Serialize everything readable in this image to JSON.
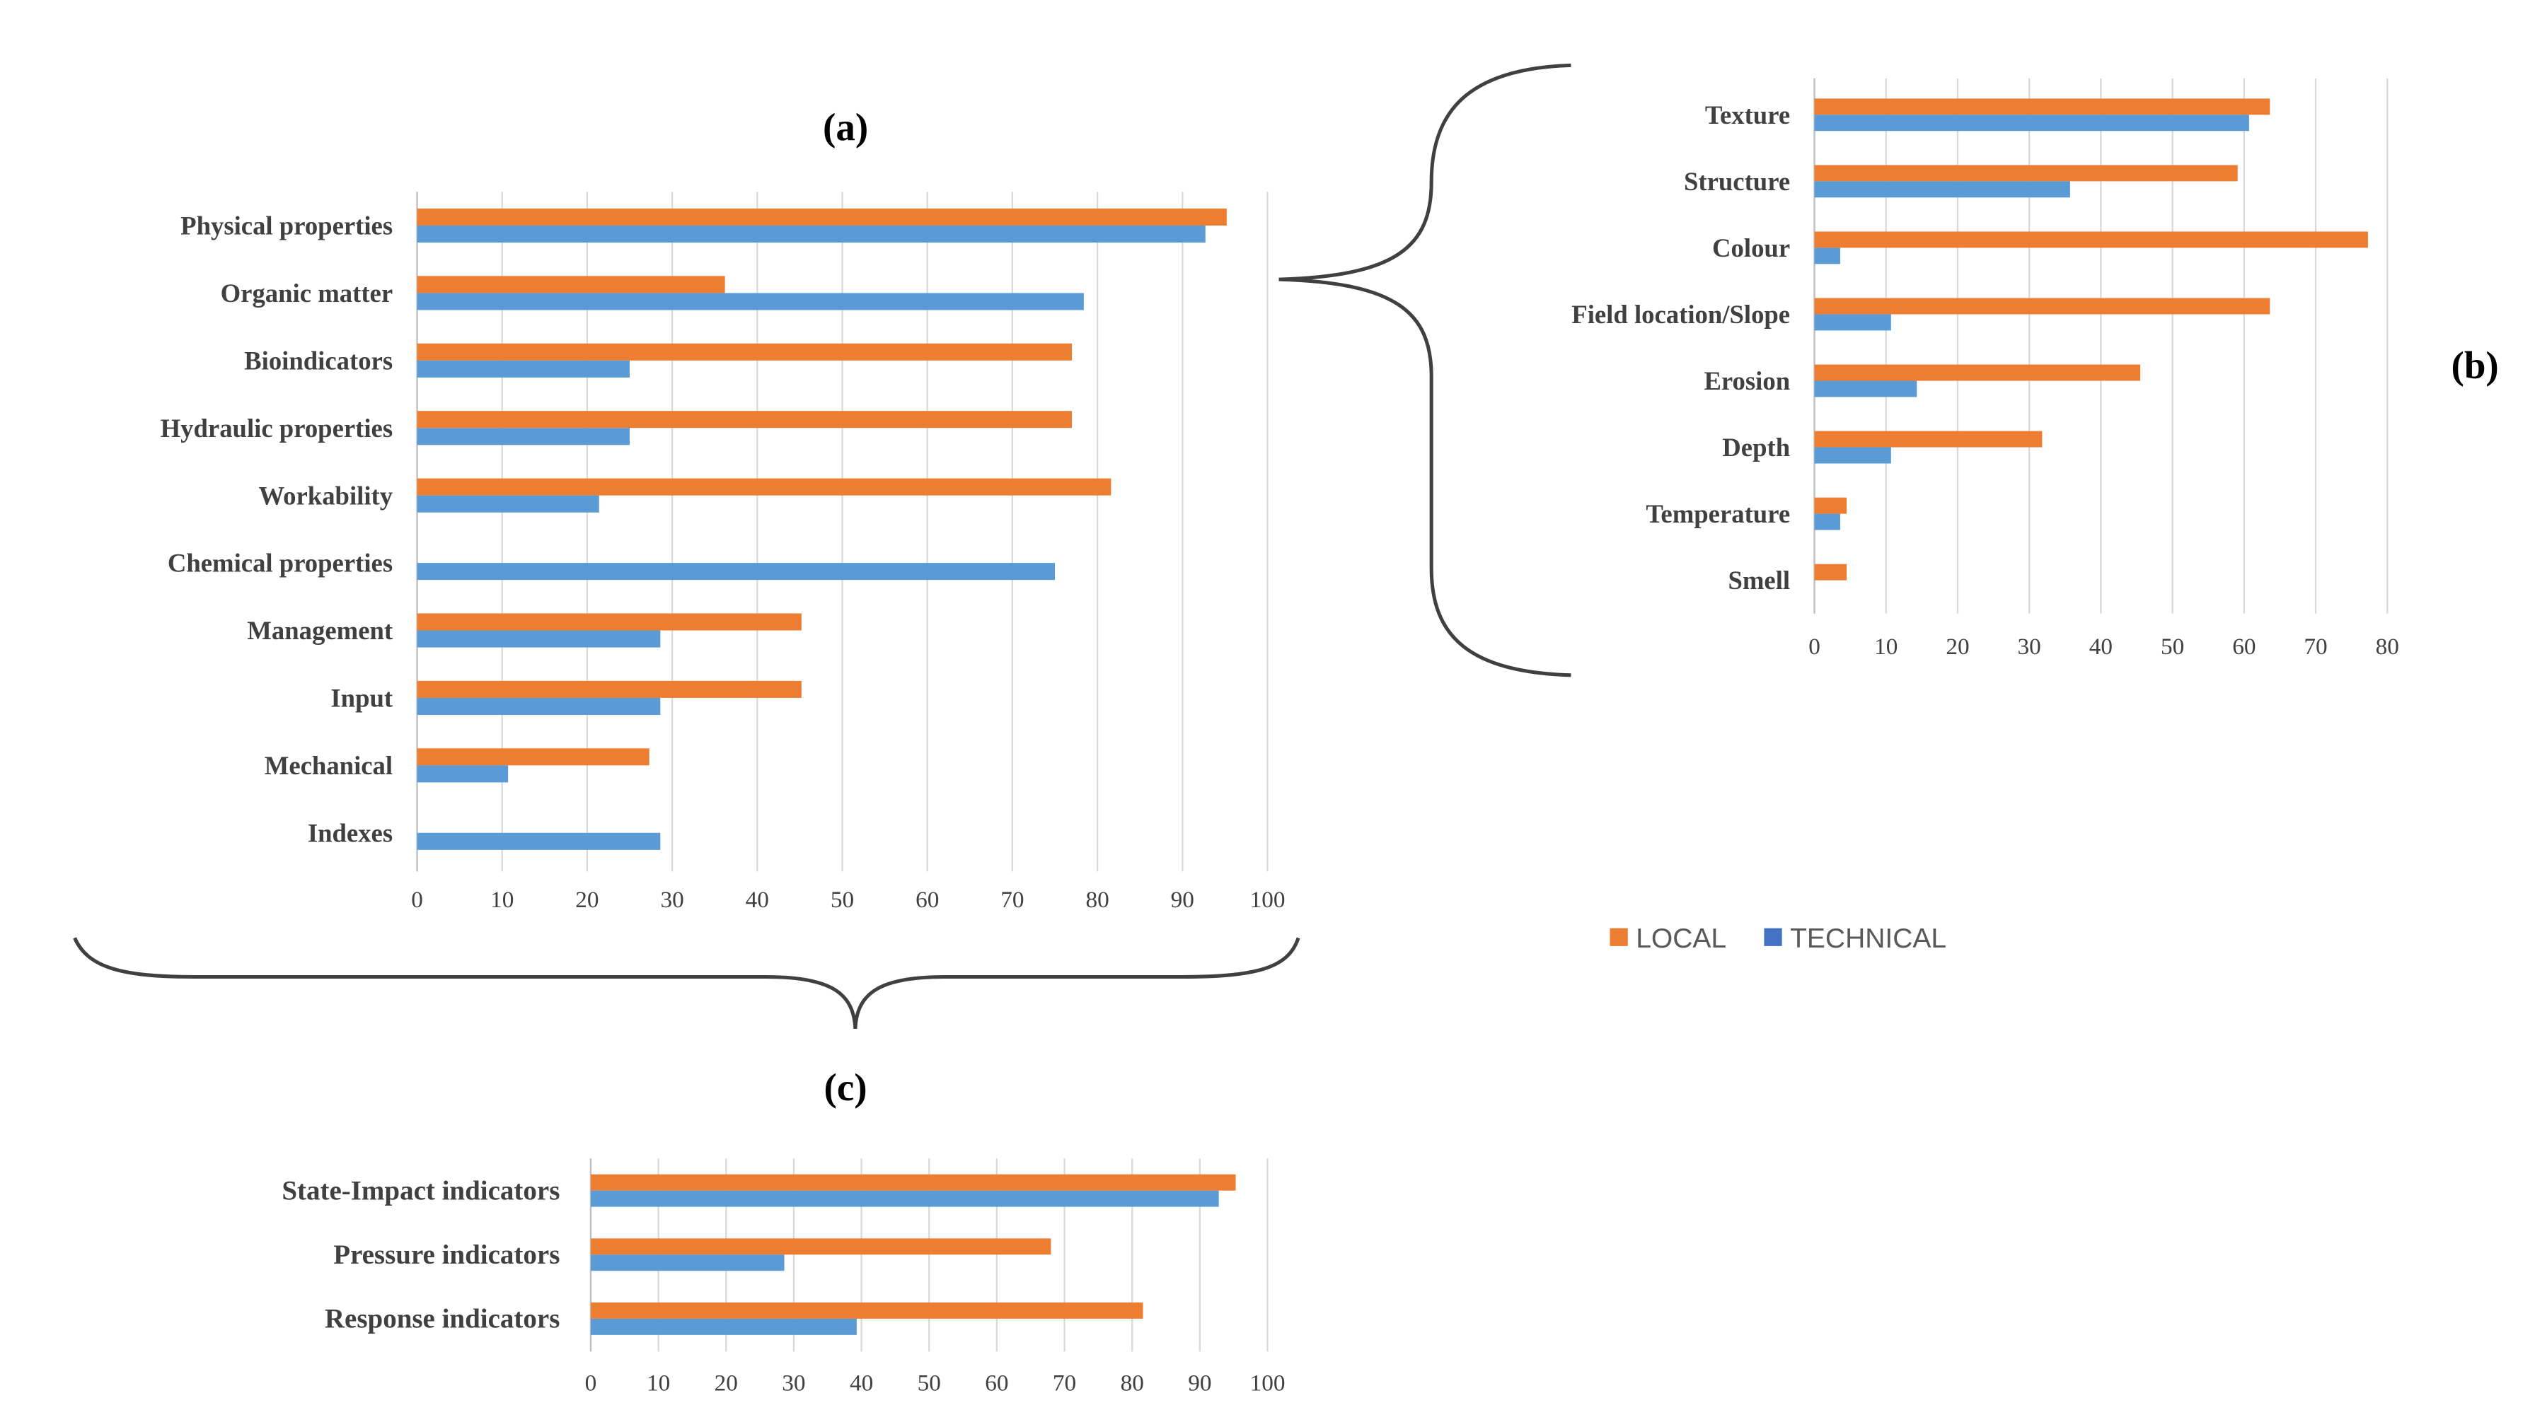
{
  "colors": {
    "local": "#ED7D31",
    "technical": "#5B9BD5",
    "legend_technical": "#4472C4",
    "grid": "#D9D9D9",
    "text": "#404040",
    "brace": "#404040"
  },
  "legend": {
    "local": "LOCAL",
    "technical": "TECHNICAL"
  },
  "chart_data": [
    {
      "id": "a",
      "panel_label": "(a)",
      "type": "bar",
      "orientation": "horizontal",
      "categories": [
        "Physical properties",
        "Organic matter",
        "Bioindicators",
        "Hydraulic properties",
        "Workability",
        "Chemical properties",
        "Management",
        "Input",
        "Mechanical",
        "Indexes"
      ],
      "series": [
        {
          "name": "LOCAL",
          "values": [
            95.2,
            36.2,
            77,
            77,
            81.6,
            0,
            45.2,
            45.2,
            27.3,
            0
          ]
        },
        {
          "name": "TECHNICAL",
          "values": [
            92.7,
            78.4,
            25,
            25,
            21.4,
            75,
            28.6,
            28.6,
            10.7,
            28.6
          ]
        }
      ],
      "xlim": [
        0,
        100
      ],
      "xticks": [
        "0",
        "10",
        "20",
        "30",
        "40",
        "50",
        "60",
        "70",
        "80",
        "90",
        "100"
      ],
      "grid": true
    },
    {
      "id": "b",
      "panel_label": "(b)",
      "type": "bar",
      "orientation": "horizontal",
      "categories": [
        "Texture",
        "Structure",
        "Colour",
        "Field location/Slope",
        "Erosion",
        "Depth",
        "Temperature",
        "Smell"
      ],
      "series": [
        {
          "name": "LOCAL",
          "values": [
            63.6,
            59.1,
            77.3,
            63.6,
            45.5,
            31.8,
            4.5,
            4.5
          ]
        },
        {
          "name": "TECHNICAL",
          "values": [
            60.7,
            35.7,
            3.6,
            10.7,
            14.3,
            10.7,
            3.6,
            0
          ]
        }
      ],
      "xlim": [
        0,
        80
      ],
      "xticks": [
        "0",
        "10",
        "20",
        "30",
        "40",
        "50",
        "60",
        "70",
        "80"
      ],
      "grid": true
    },
    {
      "id": "c",
      "panel_label": "(c)",
      "type": "bar",
      "orientation": "horizontal",
      "categories": [
        "State-Impact indicators",
        "Pressure indicators",
        "Response indicators"
      ],
      "series": [
        {
          "name": "LOCAL",
          "values": [
            95.3,
            68,
            81.6
          ]
        },
        {
          "name": "TECHNICAL",
          "values": [
            92.8,
            28.6,
            39.3
          ]
        }
      ],
      "xlim": [
        0,
        100
      ],
      "xticks": [
        "0",
        "10",
        "20",
        "30",
        "40",
        "50",
        "60",
        "70",
        "80",
        "90",
        "100"
      ],
      "grid": true
    }
  ]
}
